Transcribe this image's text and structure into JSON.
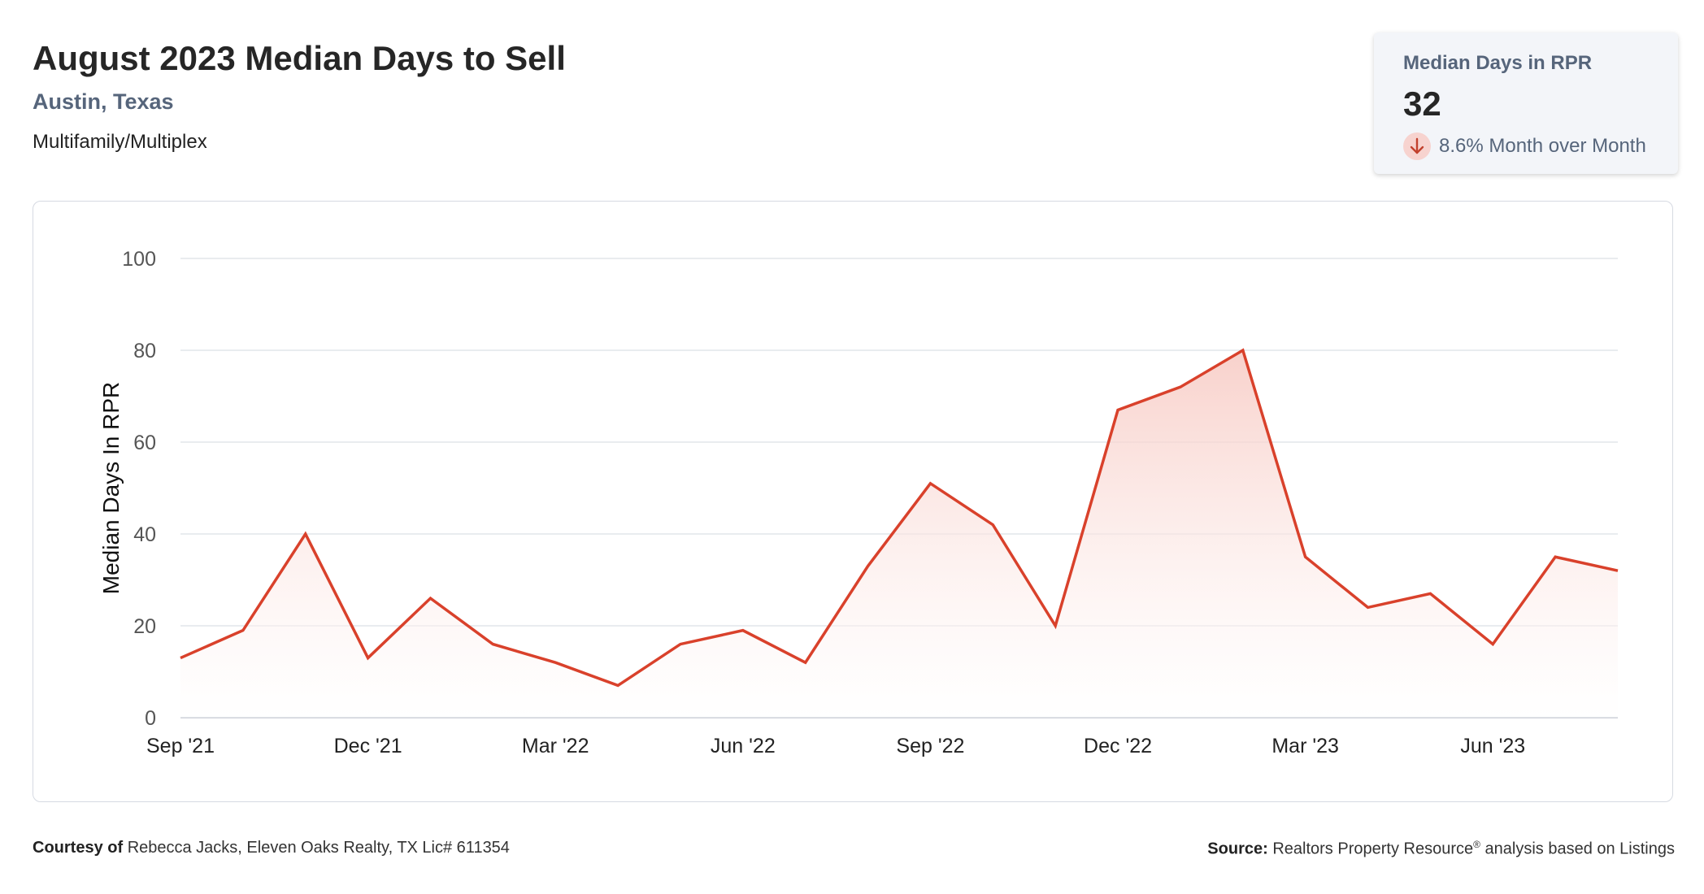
{
  "header": {
    "title": "August 2023 Median Days to Sell",
    "location": "Austin, Texas",
    "property_type": "Multifamily/Multiplex"
  },
  "kpi": {
    "label": "Median Days in RPR",
    "value": "32",
    "change_text": "8.6% Month over Month",
    "direction_icon": "arrow-down-icon",
    "direction": "down"
  },
  "footer": {
    "courtesy_label": "Courtesy of",
    "courtesy_text": "Rebecca Jacks, Eleven Oaks Realty, TX Lic# 611354",
    "source_label": "Source:",
    "source_text_a": "Realtors Property Resource",
    "source_mark": "®",
    "source_text_b": "analysis based on Listings"
  },
  "colors": {
    "line": "#d9412b",
    "fill_top": "#f7c9c2",
    "grid": "#e2e5ea",
    "kpi_icon_bg": "#f7d3cf"
  },
  "chart_data": {
    "type": "area",
    "ylabel": "Median Days In RPR",
    "xlabel": "",
    "ylim": [
      0,
      100
    ],
    "yticks": [
      0,
      20,
      40,
      60,
      80,
      100
    ],
    "grid": true,
    "x": [
      "Sep '21",
      "Oct '21",
      "Nov '21",
      "Dec '21",
      "Jan '22",
      "Feb '22",
      "Mar '22",
      "Apr '22",
      "May '22",
      "Jun '22",
      "Jul '22",
      "Aug '22",
      "Sep '22",
      "Oct '22",
      "Nov '22",
      "Dec '22",
      "Jan '23",
      "Feb '23",
      "Mar '23",
      "Apr '23",
      "May '23",
      "Jun '23",
      "Jul '23",
      "Aug '23"
    ],
    "xtick_labels": [
      "Sep '21",
      "Dec '21",
      "Mar '22",
      "Jun '22",
      "Sep '22",
      "Dec '22",
      "Mar '23",
      "Jun '23"
    ],
    "series": [
      {
        "values": [
          13,
          19,
          40,
          13,
          26,
          16,
          12,
          7,
          16,
          19,
          12,
          33,
          51,
          42,
          20,
          67,
          72,
          80,
          35,
          24,
          27,
          16,
          35,
          32
        ]
      }
    ]
  }
}
